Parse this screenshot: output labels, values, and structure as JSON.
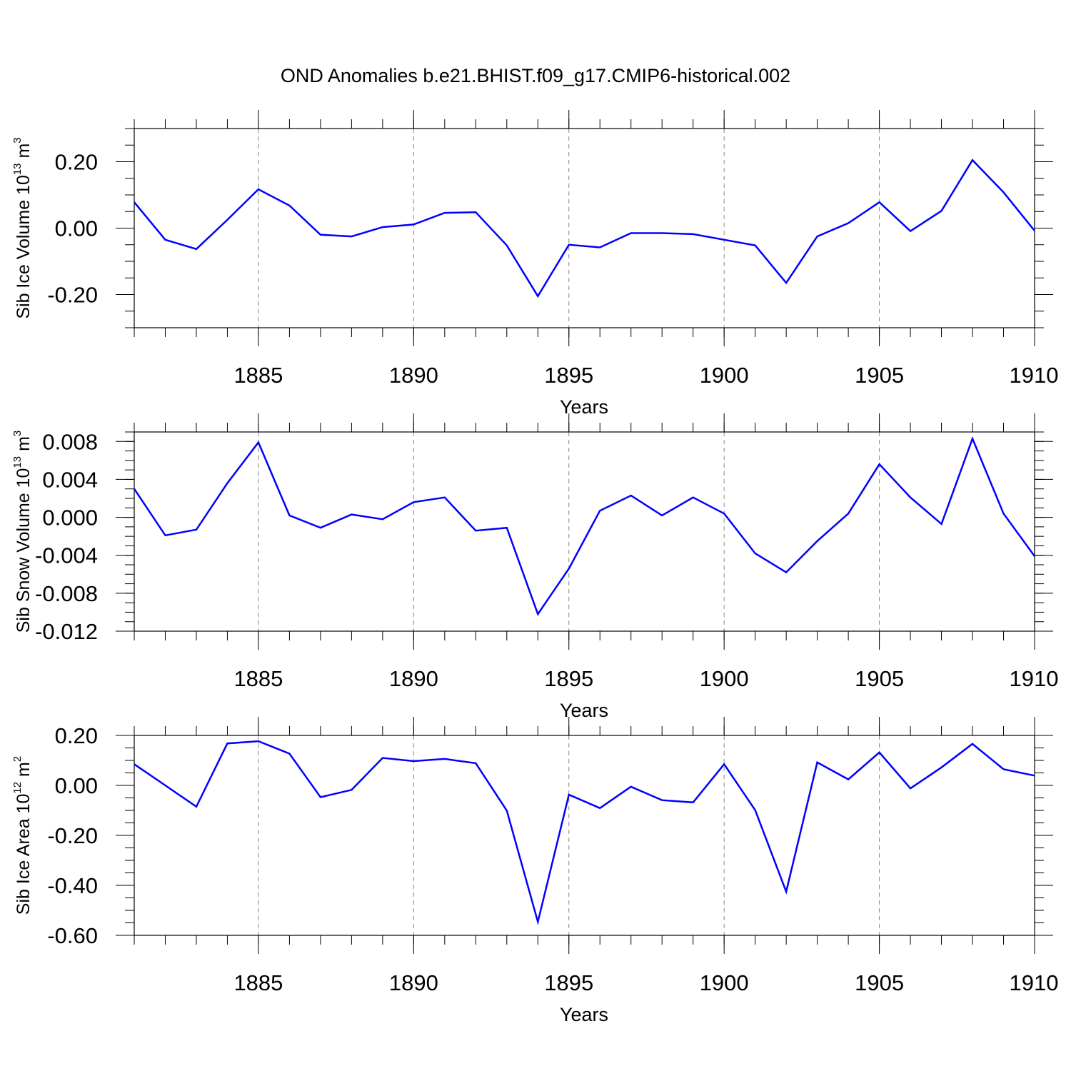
{
  "title": "OND Anomalies b.e21.BHIST.f09_g17.CMIP6-historical.002",
  "line_color": "#0000ff",
  "chart_data": [
    {
      "type": "line",
      "ylabel_prefix": "Sib Ice Volume 10",
      "ylabel_exp": "13",
      "ylabel_unit": " m",
      "ylabel_unit_exp": "3",
      "xlabel": "Years",
      "xlim": [
        1881,
        1910
      ],
      "ylim": [
        -0.3,
        0.3
      ],
      "yticks": [
        -0.2,
        0.0,
        0.2
      ],
      "ytick_labels": [
        "-0.20",
        "0.00",
        "0.20"
      ],
      "ytick_minor_step": 0.05,
      "xticks": [
        1885,
        1890,
        1895,
        1900,
        1905,
        1910
      ],
      "xtick_labels": [
        "1885",
        "1890",
        "1895",
        "1900",
        "1905",
        "1910"
      ],
      "x": [
        1881,
        1882,
        1883,
        1884,
        1885,
        1886,
        1887,
        1888,
        1889,
        1890,
        1891,
        1892,
        1893,
        1894,
        1895,
        1896,
        1897,
        1898,
        1899,
        1900,
        1901,
        1902,
        1903,
        1904,
        1905,
        1906,
        1907,
        1908,
        1909,
        1910
      ],
      "series": [
        {
          "values": [
            0.078,
            -0.035,
            -0.063,
            0.025,
            0.117,
            0.068,
            -0.02,
            -0.025,
            0.003,
            0.011,
            0.046,
            0.048,
            -0.052,
            -0.205,
            -0.05,
            -0.058,
            -0.015,
            -0.015,
            -0.018,
            -0.035,
            -0.052,
            -0.165,
            -0.025,
            0.015,
            0.078,
            -0.009,
            0.052,
            0.205,
            0.108,
            -0.008
          ]
        }
      ]
    },
    {
      "type": "line",
      "ylabel_prefix": "Sib Snow Volume 10",
      "ylabel_exp": "13",
      "ylabel_unit": " m",
      "ylabel_unit_exp": "3",
      "xlabel": "Years",
      "xlim": [
        1881,
        1910
      ],
      "ylim": [
        -0.012,
        0.009
      ],
      "yticks": [
        -0.012,
        -0.008,
        -0.004,
        0.0,
        0.004,
        0.008
      ],
      "ytick_labels": [
        "-0.012",
        "-0.008",
        "-0.004",
        "0.000",
        "0.004",
        "0.008"
      ],
      "ytick_minor_step": 0.001,
      "xticks": [
        1885,
        1890,
        1895,
        1900,
        1905,
        1910
      ],
      "xtick_labels": [
        "1885",
        "1890",
        "1895",
        "1900",
        "1905",
        "1910"
      ],
      "x": [
        1881,
        1882,
        1883,
        1884,
        1885,
        1886,
        1887,
        1888,
        1889,
        1890,
        1891,
        1892,
        1893,
        1894,
        1895,
        1896,
        1897,
        1898,
        1899,
        1900,
        1901,
        1902,
        1903,
        1904,
        1905,
        1906,
        1907,
        1908,
        1909,
        1910
      ],
      "series": [
        {
          "values": [
            0.003,
            -0.0019,
            -0.0013,
            0.0036,
            0.0079,
            0.0002,
            -0.0011,
            0.0003,
            -0.0002,
            0.0016,
            0.0021,
            -0.0014,
            -0.0011,
            -0.0102,
            -0.0054,
            0.0007,
            0.0023,
            0.0002,
            0.0021,
            0.0004,
            -0.0038,
            -0.0058,
            -0.0025,
            0.0004,
            0.0056,
            0.0021,
            -0.0007,
            0.0083,
            0.0004,
            -0.0041
          ]
        }
      ]
    },
    {
      "type": "line",
      "ylabel_prefix": "Sib Ice Area 10",
      "ylabel_exp": "12",
      "ylabel_unit": " m",
      "ylabel_unit_exp": "2",
      "xlabel": "Years",
      "xlim": [
        1881,
        1910
      ],
      "ylim": [
        -0.6,
        0.2
      ],
      "yticks": [
        -0.6,
        -0.4,
        -0.2,
        0.0,
        0.2
      ],
      "ytick_labels": [
        "-0.60",
        "-0.40",
        "-0.20",
        "0.00",
        "0.20"
      ],
      "ytick_minor_step": 0.05,
      "xticks": [
        1885,
        1890,
        1895,
        1900,
        1905,
        1910
      ],
      "xtick_labels": [
        "1885",
        "1890",
        "1895",
        "1900",
        "1905",
        "1910"
      ],
      "x": [
        1881,
        1882,
        1883,
        1884,
        1885,
        1886,
        1887,
        1888,
        1889,
        1890,
        1891,
        1892,
        1893,
        1894,
        1895,
        1896,
        1897,
        1898,
        1899,
        1900,
        1901,
        1902,
        1903,
        1904,
        1905,
        1906,
        1907,
        1908,
        1909,
        1910
      ],
      "series": [
        {
          "values": [
            0.085,
            0.0,
            -0.085,
            0.168,
            0.177,
            0.127,
            -0.047,
            -0.018,
            0.11,
            0.097,
            0.106,
            0.089,
            -0.101,
            -0.546,
            -0.037,
            -0.091,
            -0.005,
            -0.059,
            -0.068,
            0.085,
            -0.099,
            -0.425,
            0.092,
            0.024,
            0.132,
            -0.012,
            0.072,
            0.166,
            0.065,
            0.039
          ]
        }
      ]
    }
  ]
}
